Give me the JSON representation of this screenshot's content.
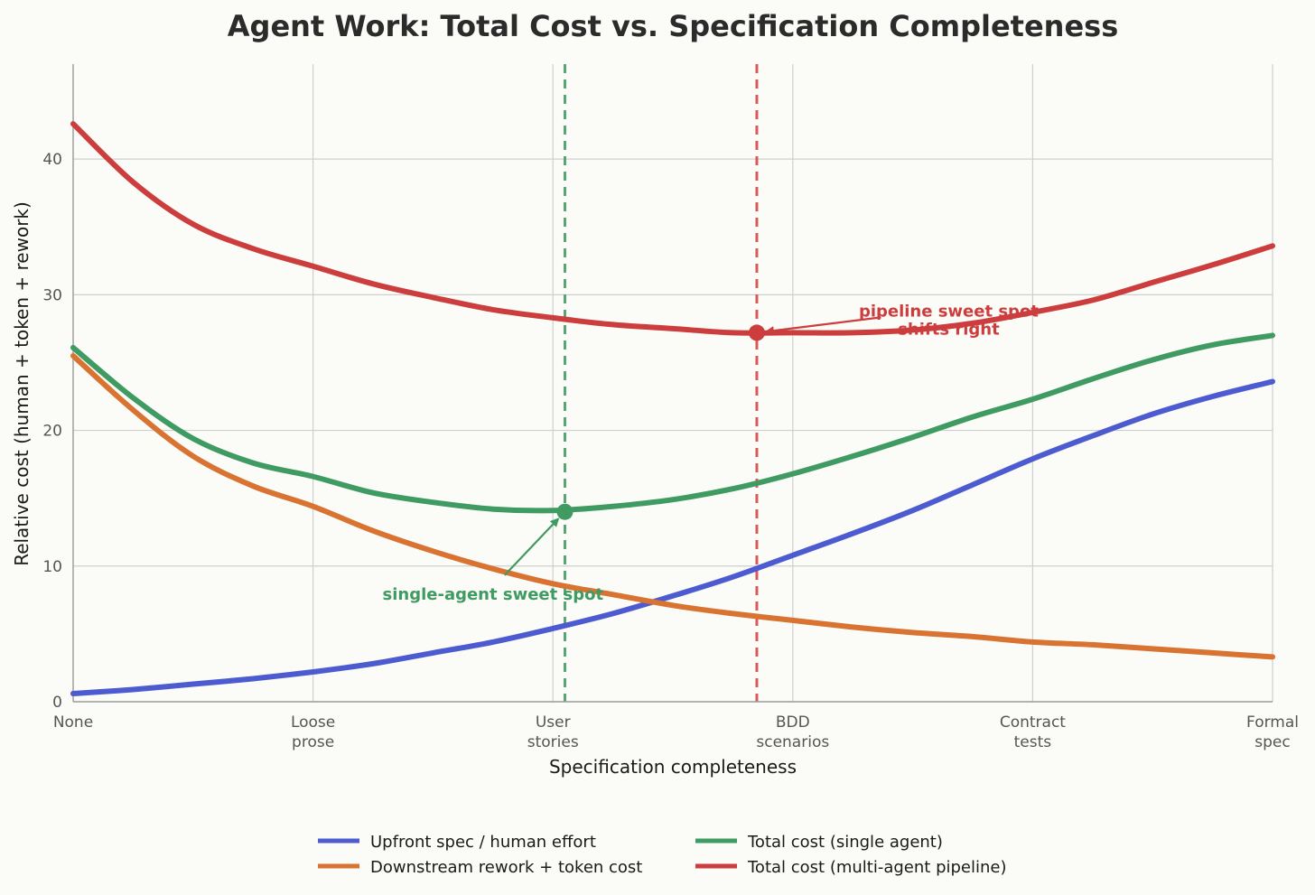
{
  "chart_data": {
    "type": "line",
    "title": "Agent Work: Total Cost vs. Specification Completeness",
    "xlabel": "Specification completeness",
    "ylabel": "Relative cost (human + token + rework)",
    "xlim": [
      0,
      5
    ],
    "ylim": [
      0,
      47
    ],
    "yticks": [
      0,
      10,
      20,
      30,
      40
    ],
    "categories": [
      [
        "None"
      ],
      [
        "Loose",
        "prose"
      ],
      [
        "User",
        "stories"
      ],
      [
        "BDD",
        "scenarios"
      ],
      [
        "Contract",
        "tests"
      ],
      [
        "Formal",
        "spec"
      ]
    ],
    "grid": true,
    "legend_position": "bottom-center",
    "x": [
      0,
      0.25,
      0.5,
      0.75,
      1.0,
      1.25,
      1.5,
      1.75,
      2.0,
      2.25,
      2.5,
      2.75,
      3.0,
      3.25,
      3.5,
      3.75,
      4.0,
      4.25,
      4.5,
      4.75,
      5.0
    ],
    "series": [
      {
        "name": "Upfront spec / human effort",
        "color": "#4d5bd1",
        "values": [
          0.6,
          0.9,
          1.3,
          1.7,
          2.2,
          2.8,
          3.6,
          4.4,
          5.4,
          6.5,
          7.8,
          9.2,
          10.8,
          12.4,
          14.1,
          16.0,
          17.9,
          19.6,
          21.2,
          22.5,
          23.6
        ]
      },
      {
        "name": "Downstream rework + token cost",
        "color": "#d97332",
        "values": [
          25.5,
          21.5,
          18.1,
          15.9,
          14.4,
          12.6,
          11.1,
          9.8,
          8.7,
          7.9,
          7.1,
          6.5,
          6.0,
          5.5,
          5.1,
          4.8,
          4.4,
          4.2,
          3.9,
          3.6,
          3.3
        ]
      },
      {
        "name": "Total cost (single agent)",
        "color": "#3f9b62",
        "values": [
          26.1,
          22.4,
          19.4,
          17.6,
          16.6,
          15.4,
          14.7,
          14.2,
          14.1,
          14.4,
          14.9,
          15.7,
          16.8,
          18.1,
          19.5,
          21.0,
          22.3,
          23.8,
          25.2,
          26.3,
          27.0
        ]
      },
      {
        "name": "Total cost (multi-agent pipeline)",
        "color": "#cc3d3d",
        "values": [
          42.6,
          38.3,
          35.2,
          33.4,
          32.1,
          30.8,
          29.8,
          28.9,
          28.3,
          27.8,
          27.5,
          27.2,
          27.2,
          27.2,
          27.4,
          27.9,
          28.7,
          29.6,
          30.9,
          32.2,
          33.6
        ]
      }
    ],
    "markers": [
      {
        "series": "Total cost (single agent)",
        "x": 2.05,
        "y": 14.0,
        "color": "#3f9b62"
      },
      {
        "series": "Total cost (multi-agent pipeline)",
        "x": 2.85,
        "y": 27.2,
        "color": "#cc3d3d"
      }
    ],
    "vlines": [
      {
        "x": 2.05,
        "color": "#5aa373",
        "style": "dashed"
      },
      {
        "x": 2.85,
        "color": "#d95a5a",
        "style": "dashed"
      }
    ],
    "annotations": [
      {
        "lines": [
          "single-agent sweet spot"
        ],
        "color": "#3f9b62",
        "text_x": 1.75,
        "text_y": 8.0,
        "arrow_x": 2.05,
        "arrow_y": 14.0
      },
      {
        "lines": [
          "pipeline sweet spot",
          "shifts right"
        ],
        "color": "#cc3d3d",
        "text_x": 3.65,
        "text_y": 28.2,
        "arrow_x": 2.85,
        "arrow_y": 27.2
      }
    ]
  }
}
